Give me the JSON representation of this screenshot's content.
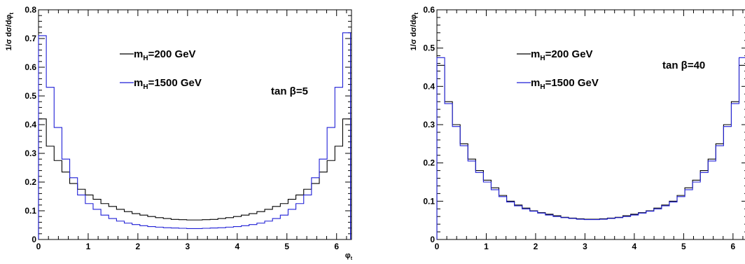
{
  "chart_data": [
    {
      "type": "line",
      "step": true,
      "ylabel": "1/σ dσ/dφ",
      "ylabel_sub": "t",
      "xlabel": "φ",
      "xlabel_sub": "t",
      "xlim": [
        0,
        6.3
      ],
      "ylim": [
        0,
        0.8
      ],
      "xticks": [
        "0",
        "1",
        "2",
        "3",
        "4",
        "5",
        "6"
      ],
      "yticks": [
        "0",
        "0.1",
        "0.2",
        "0.3",
        "0.4",
        "0.5",
        "0.6",
        "0.7",
        "0.8"
      ],
      "annotation": "tan β=5",
      "bin_width": 0.157,
      "series": [
        {
          "name": "m_H=200 GeV",
          "name_main": "m",
          "name_sub": "H",
          "name_rest": "=200 GeV",
          "color": "#000000",
          "values": [
            0.42,
            0.325,
            0.275,
            0.235,
            0.195,
            0.175,
            0.155,
            0.14,
            0.125,
            0.115,
            0.105,
            0.097,
            0.09,
            0.085,
            0.08,
            0.076,
            0.073,
            0.07,
            0.069,
            0.068,
            0.068,
            0.069,
            0.07,
            0.073,
            0.076,
            0.08,
            0.085,
            0.09,
            0.097,
            0.105,
            0.115,
            0.125,
            0.14,
            0.155,
            0.175,
            0.195,
            0.235,
            0.275,
            0.325,
            0.42
          ]
        },
        {
          "name": "m_H=1500 GeV",
          "name_main": "m",
          "name_sub": "H",
          "name_rest": "=1500 GeV",
          "color": "#1f1fd6",
          "values": [
            0.71,
            0.53,
            0.39,
            0.28,
            0.215,
            0.155,
            0.125,
            0.105,
            0.085,
            0.073,
            0.064,
            0.057,
            0.052,
            0.048,
            0.045,
            0.043,
            0.041,
            0.04,
            0.039,
            0.038,
            0.038,
            0.039,
            0.04,
            0.041,
            0.043,
            0.045,
            0.048,
            0.052,
            0.057,
            0.064,
            0.073,
            0.085,
            0.105,
            0.125,
            0.155,
            0.215,
            0.28,
            0.39,
            0.53,
            0.72
          ]
        }
      ]
    },
    {
      "type": "line",
      "step": true,
      "ylabel": "1/σ dσ/dφ",
      "ylabel_sub": "t",
      "xlabel": "",
      "xlabel_sub": "",
      "xlim": [
        0,
        6.3
      ],
      "ylim": [
        0,
        0.6
      ],
      "xticks": [
        "0",
        "1",
        "2",
        "3",
        "4",
        "5",
        "6"
      ],
      "yticks": [
        "0",
        "0.1",
        "0.2",
        "0.3",
        "0.4",
        "0.5",
        "0.6"
      ],
      "annotation": "tan β=40",
      "bin_width": 0.157,
      "series": [
        {
          "name": "m_H=200 GeV",
          "name_main": "m",
          "name_sub": "H",
          "name_rest": "=200 GeV",
          "color": "#000000",
          "values": [
            0.455,
            0.36,
            0.3,
            0.25,
            0.21,
            0.18,
            0.155,
            0.135,
            0.115,
            0.1,
            0.09,
            0.082,
            0.075,
            0.07,
            0.066,
            0.062,
            0.058,
            0.056,
            0.054,
            0.053,
            0.053,
            0.054,
            0.056,
            0.058,
            0.062,
            0.066,
            0.07,
            0.075,
            0.082,
            0.09,
            0.1,
            0.115,
            0.135,
            0.155,
            0.18,
            0.21,
            0.25,
            0.3,
            0.36,
            0.455
          ]
        },
        {
          "name": "m_H=1500 GeV",
          "name_main": "m",
          "name_sub": "H",
          "name_rest": "=1500 GeV",
          "color": "#1f1fd6",
          "values": [
            0.475,
            0.355,
            0.295,
            0.245,
            0.205,
            0.175,
            0.15,
            0.13,
            0.112,
            0.098,
            0.088,
            0.08,
            0.074,
            0.069,
            0.064,
            0.06,
            0.057,
            0.055,
            0.053,
            0.052,
            0.052,
            0.053,
            0.055,
            0.057,
            0.06,
            0.064,
            0.069,
            0.074,
            0.08,
            0.088,
            0.098,
            0.112,
            0.13,
            0.15,
            0.175,
            0.205,
            0.245,
            0.295,
            0.355,
            0.475
          ]
        }
      ]
    }
  ]
}
